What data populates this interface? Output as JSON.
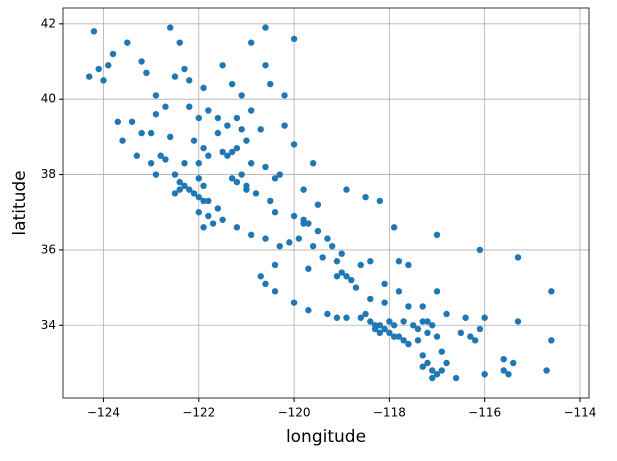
{
  "chart_data": {
    "type": "scatter",
    "xlabel": "longitude",
    "ylabel": "latitude",
    "color": "#1f77b4",
    "grid": true,
    "xlim": [
      -124.85,
      -113.81
    ],
    "ylim": [
      32.07,
      42.42
    ],
    "xticks": [
      {
        "value": -124,
        "label": "−124"
      },
      {
        "value": -122,
        "label": "−122"
      },
      {
        "value": -120,
        "label": "−120"
      },
      {
        "value": -118,
        "label": "−118"
      },
      {
        "value": -116,
        "label": "−116"
      },
      {
        "value": -114,
        "label": "−114"
      }
    ],
    "yticks": [
      34,
      36,
      38,
      40,
      42
    ],
    "x": [
      -124.2,
      -124.1,
      -124.0,
      -123.9,
      -124.3,
      -123.8,
      -123.5,
      -123.2,
      -122.6,
      -122.4,
      -122.3,
      -122.2,
      -122.5,
      -121.9,
      -121.5,
      -120.9,
      -120.6,
      -120.0,
      -120.5,
      -121.1,
      -123.4,
      -123.7,
      -123.2,
      -122.9,
      -122.2,
      -122.0,
      -121.8,
      -121.6,
      -121.4,
      -121.1,
      -120.7,
      -120.2,
      -121.0,
      -121.5,
      -121.3,
      -121.2,
      -121.4,
      -121.8,
      -122.0,
      -122.3,
      -122.5,
      -122.7,
      -122.8,
      -123.0,
      -122.4,
      -122.3,
      -122.2,
      -122.1,
      -122.0,
      -121.9,
      -121.8,
      -121.9,
      -122.0,
      -122.4,
      -122.5,
      -122.0,
      -121.8,
      -121.7,
      -121.9,
      -121.5,
      -121.2,
      -121.0,
      -121.0,
      -120.8,
      -120.5,
      -120.4,
      -120.0,
      -119.8,
      -119.7,
      -119.8,
      -119.5,
      -119.3,
      -119.2,
      -119.0,
      -119.1,
      -119.0,
      -118.9,
      -119.1,
      -118.8,
      -120.4,
      -120.7,
      -120.6,
      -120.4,
      -120.0,
      -119.7,
      -119.3,
      -119.1,
      -118.9,
      -118.6,
      -118.4,
      -118.3,
      -118.2,
      -118.3,
      -118.1,
      -118.0,
      -118.2,
      -117.9,
      -117.8,
      -117.7,
      -117.9,
      -117.7,
      -117.5,
      -117.3,
      -117.2,
      -117.1,
      -117.4,
      -117.2,
      -117.0,
      -117.3,
      -117.2,
      -117.1,
      -117.0,
      -117.1,
      -116.9,
      -116.8,
      -116.5,
      -116.3,
      -116.2,
      -116.1,
      -115.6,
      -115.5,
      -115.4,
      -114.6,
      -114.6,
      -114.7,
      -117.0,
      -116.1,
      -115.3,
      -117.6,
      -117.8,
      -118.1,
      -117.8,
      -117.3,
      -117.0,
      -116.8,
      -116.4,
      -116.0,
      -115.3,
      -117.9,
      -118.2,
      -118.5,
      -118.9,
      -119.6,
      -120.0,
      -120.3,
      -120.4,
      -120.6,
      -120.9,
      -121.1,
      -121.3,
      -121.6,
      -121.2,
      -120.9,
      -120.6,
      -120.3,
      -120.1,
      -119.9,
      -119.6,
      -119.4,
      -119.7,
      -118.7,
      -118.4,
      -118.1,
      -117.6,
      -118.6,
      -118.4,
      -123.6,
      -123.3,
      -122.9,
      -123.0,
      -122.6,
      -122.1,
      -121.6,
      -121.9,
      -121.2,
      -120.9,
      -120.2,
      -120.6,
      -121.3,
      -122.9,
      -123.1,
      -122.7,
      -119.5,
      -119.8,
      -118.0,
      -118.5,
      -117.4,
      -117.6,
      -116.9,
      -117.3,
      -116.6,
      -116.0,
      -115.6
    ],
    "values": [
      41.8,
      40.8,
      40.5,
      40.9,
      40.6,
      41.2,
      41.5,
      41.0,
      41.9,
      41.5,
      40.8,
      40.5,
      40.6,
      40.3,
      40.9,
      41.5,
      41.9,
      41.6,
      40.4,
      40.1,
      39.4,
      39.4,
      39.1,
      39.6,
      39.8,
      39.5,
      39.7,
      39.5,
      39.3,
      39.2,
      39.2,
      39.3,
      38.9,
      38.6,
      38.6,
      38.7,
      38.5,
      38.5,
      38.3,
      38.3,
      38.0,
      38.4,
      38.5,
      38.3,
      37.8,
      37.7,
      37.6,
      37.5,
      37.4,
      37.3,
      37.3,
      37.7,
      37.9,
      37.6,
      37.5,
      37.0,
      36.9,
      36.7,
      36.6,
      36.8,
      37.8,
      37.6,
      37.7,
      37.5,
      37.3,
      37.0,
      36.9,
      36.8,
      36.7,
      36.7,
      36.5,
      36.3,
      36.1,
      35.9,
      35.7,
      35.4,
      35.3,
      35.3,
      35.2,
      35.6,
      35.3,
      35.1,
      34.9,
      34.6,
      34.4,
      34.3,
      34.2,
      34.2,
      34.2,
      34.1,
      34.0,
      34.0,
      33.9,
      33.9,
      33.8,
      33.8,
      33.7,
      33.7,
      33.6,
      34.0,
      34.1,
      34.0,
      34.1,
      34.1,
      34.0,
      33.9,
      33.8,
      33.7,
      33.2,
      33.0,
      32.8,
      32.7,
      32.6,
      32.8,
      33.0,
      33.8,
      33.7,
      33.6,
      33.9,
      32.8,
      32.7,
      33.0,
      33.6,
      34.9,
      32.8,
      36.4,
      36.0,
      35.8,
      35.6,
      35.7,
      35.1,
      34.9,
      34.5,
      34.9,
      34.3,
      34.2,
      34.2,
      34.1,
      36.6,
      37.3,
      37.4,
      37.6,
      38.3,
      38.8,
      38.0,
      37.9,
      38.2,
      38.3,
      38.0,
      37.9,
      37.1,
      36.6,
      36.4,
      36.3,
      36.1,
      36.2,
      36.3,
      36.1,
      35.8,
      35.5,
      35.0,
      34.7,
      34.6,
      34.5,
      35.6,
      35.7,
      38.9,
      38.5,
      38.0,
      39.1,
      39.0,
      38.9,
      39.1,
      38.7,
      39.5,
      39.7,
      40.1,
      40.9,
      40.4,
      40.1,
      40.7,
      39.8,
      37.2,
      37.6,
      34.1,
      34.3,
      33.6,
      33.5,
      33.3,
      32.9,
      32.6,
      32.7,
      33.1
    ]
  }
}
